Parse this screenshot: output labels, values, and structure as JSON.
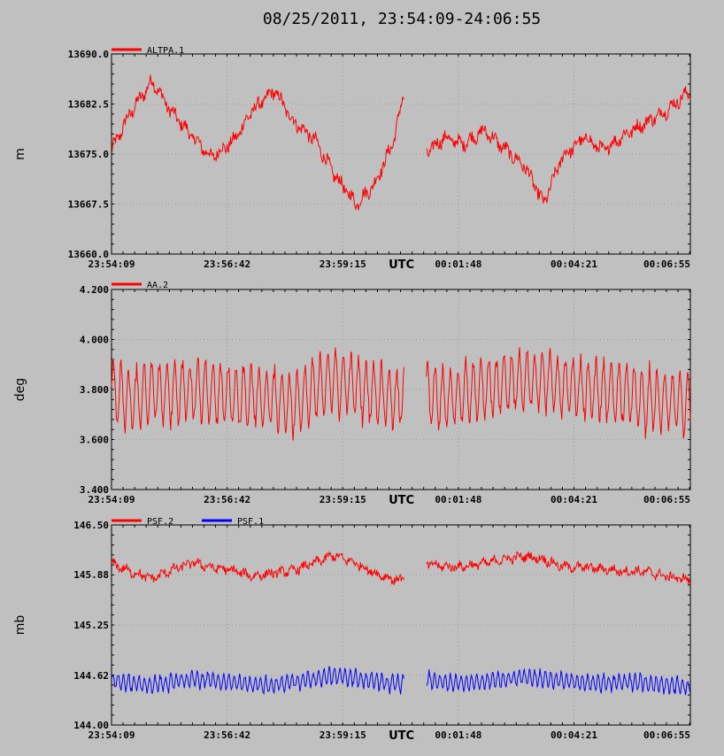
{
  "title": "08/25/2011, 23:54:09-24:06:55",
  "chart_data": [
    {
      "type": "line",
      "ylabel": "m",
      "xlabel": "UTC",
      "ylim": [
        13660.0,
        13690.0
      ],
      "ytick_values": [
        13660.0,
        13667.5,
        13675.0,
        13682.5,
        13690.0
      ],
      "ytick_labels": [
        "13660.0",
        "13667.5",
        "13675.0",
        "13682.5",
        "13690.0"
      ],
      "xlim_seconds": [
        0,
        766
      ],
      "xtick_seconds": [
        0,
        153,
        306,
        459,
        612,
        766
      ],
      "xtick_labels": [
        "23:54:09",
        "23:56:42",
        "23:59:15",
        "00:01:48",
        "00:04:21",
        "00:06:55"
      ],
      "data_gap": [
        "00:00:36",
        "00:01:05"
      ],
      "grid": true,
      "legend_placement": "top-left",
      "series": [
        {
          "name": "ALTPA.1",
          "color": "#ff0000",
          "x": [
            "23:54:09",
            "23:54:33",
            "23:55:03",
            "23:55:27",
            "23:55:57",
            "23:56:21",
            "23:56:51",
            "23:57:15",
            "23:57:45",
            "23:58:09",
            "23:58:39",
            "23:59:03",
            "23:59:33",
            "23:59:57",
            "00:00:21",
            "00:00:36",
            "00:01:05",
            "00:01:29",
            "00:01:53",
            "00:02:23",
            "00:02:47",
            "00:03:17",
            "00:03:41",
            "00:04:05",
            "00:04:35",
            "00:04:59",
            "00:05:29",
            "00:05:53",
            "00:06:23",
            "00:06:55"
          ],
          "y": [
            13675.5,
            13681.0,
            13686.0,
            13681.5,
            13677.5,
            13674.5,
            13677.0,
            13681.5,
            13684.5,
            13680.0,
            13677.0,
            13672.0,
            13667.5,
            13670.5,
            13676.5,
            13684.0,
            13675.0,
            13677.5,
            13676.5,
            13678.5,
            13676.0,
            13673.0,
            13667.5,
            13674.5,
            13677.5,
            13675.5,
            13678.0,
            13679.5,
            13681.5,
            13684.5
          ]
        }
      ]
    },
    {
      "type": "line",
      "ylabel": "deg",
      "xlabel": "UTC",
      "ylim": [
        3.4,
        4.2
      ],
      "ytick_values": [
        3.4,
        3.6,
        3.8,
        4.0,
        4.2
      ],
      "ytick_labels": [
        "3.400",
        "3.600",
        "3.800",
        "4.000",
        "4.200"
      ],
      "xlim_seconds": [
        0,
        766
      ],
      "xtick_seconds": [
        0,
        153,
        306,
        459,
        612,
        766
      ],
      "xtick_labels": [
        "23:54:09",
        "23:56:42",
        "23:59:15",
        "00:01:48",
        "00:04:21",
        "00:06:55"
      ],
      "data_gap": [
        "00:00:36",
        "00:01:05"
      ],
      "grid": true,
      "legend_placement": "top-left",
      "series": [
        {
          "name": "AA.2",
          "color": "#ff0000",
          "x": [
            "23:54:09",
            "23:54:33",
            "23:55:03",
            "23:55:27",
            "23:55:57",
            "23:56:21",
            "23:56:51",
            "23:57:15",
            "23:57:45",
            "23:58:09",
            "23:58:39",
            "23:59:03",
            "23:59:33",
            "23:59:57",
            "00:00:21",
            "00:00:36",
            "00:01:05",
            "00:01:29",
            "00:01:53",
            "00:02:23",
            "00:02:47",
            "00:03:17",
            "00:03:41",
            "00:04:05",
            "00:04:35",
            "00:04:59",
            "00:05:29",
            "00:05:53",
            "00:06:23",
            "00:06:55"
          ],
          "y": [
            3.8,
            3.76,
            3.79,
            3.78,
            3.8,
            3.79,
            3.77,
            3.78,
            3.76,
            3.74,
            3.8,
            3.84,
            3.81,
            3.78,
            3.77,
            3.76,
            3.78,
            3.76,
            3.78,
            3.8,
            3.82,
            3.83,
            3.84,
            3.81,
            3.8,
            3.79,
            3.78,
            3.76,
            3.75,
            3.74
          ]
        }
      ]
    },
    {
      "type": "line",
      "ylabel": "mb",
      "xlabel": "UTC",
      "ylim": [
        144.0,
        146.5
      ],
      "ytick_values": [
        144.0,
        144.62,
        145.25,
        145.88,
        146.5
      ],
      "ytick_labels": [
        "144.00",
        "144.62",
        "145.25",
        "145.88",
        "146.50"
      ],
      "xlim_seconds": [
        0,
        766
      ],
      "xtick_seconds": [
        0,
        153,
        306,
        459,
        612,
        766
      ],
      "xtick_labels": [
        "23:54:09",
        "23:56:42",
        "23:59:15",
        "00:01:48",
        "00:04:21",
        "00:06:55"
      ],
      "data_gap": [
        "00:00:36",
        "00:01:05"
      ],
      "grid": true,
      "legend_placement": "top-left",
      "series": [
        {
          "name": "PSF.2",
          "color": "#ff0000",
          "x": [
            "23:54:09",
            "23:54:33",
            "23:55:03",
            "23:55:27",
            "23:55:57",
            "23:56:21",
            "23:56:51",
            "23:57:15",
            "23:57:45",
            "23:58:09",
            "23:58:39",
            "23:59:03",
            "23:59:33",
            "23:59:57",
            "00:00:21",
            "00:00:36",
            "00:01:05",
            "00:01:29",
            "00:01:53",
            "00:02:23",
            "00:02:47",
            "00:03:17",
            "00:03:41",
            "00:04:05",
            "00:04:35",
            "00:04:59",
            "00:05:29",
            "00:05:53",
            "00:06:23",
            "00:06:55"
          ],
          "y": [
            146.02,
            145.92,
            145.83,
            145.93,
            146.03,
            145.97,
            145.93,
            145.86,
            145.9,
            145.93,
            146.03,
            146.12,
            146.02,
            145.9,
            145.82,
            145.82,
            146.02,
            145.98,
            145.98,
            146.02,
            146.07,
            146.11,
            146.07,
            145.98,
            145.97,
            145.95,
            145.92,
            145.92,
            145.86,
            145.81
          ]
        },
        {
          "name": "PSF.1",
          "color": "#0000ff",
          "x": [
            "23:54:09",
            "23:54:33",
            "23:55:03",
            "23:55:27",
            "23:55:57",
            "23:56:21",
            "23:56:51",
            "23:57:15",
            "23:57:45",
            "23:58:09",
            "23:58:39",
            "23:59:03",
            "23:59:33",
            "23:59:57",
            "00:00:21",
            "00:00:36",
            "00:01:05",
            "00:01:29",
            "00:01:53",
            "00:02:23",
            "00:02:47",
            "00:03:17",
            "00:03:41",
            "00:04:05",
            "00:04:35",
            "00:04:59",
            "00:05:29",
            "00:05:53",
            "00:06:23",
            "00:06:55"
          ],
          "y": [
            144.56,
            144.52,
            144.5,
            144.53,
            144.58,
            144.56,
            144.52,
            144.5,
            144.5,
            144.54,
            144.58,
            144.62,
            144.58,
            144.55,
            144.52,
            144.52,
            144.58,
            144.53,
            144.53,
            144.55,
            144.57,
            144.6,
            144.58,
            144.55,
            144.53,
            144.53,
            144.53,
            144.53,
            144.5,
            144.47
          ]
        }
      ]
    }
  ]
}
